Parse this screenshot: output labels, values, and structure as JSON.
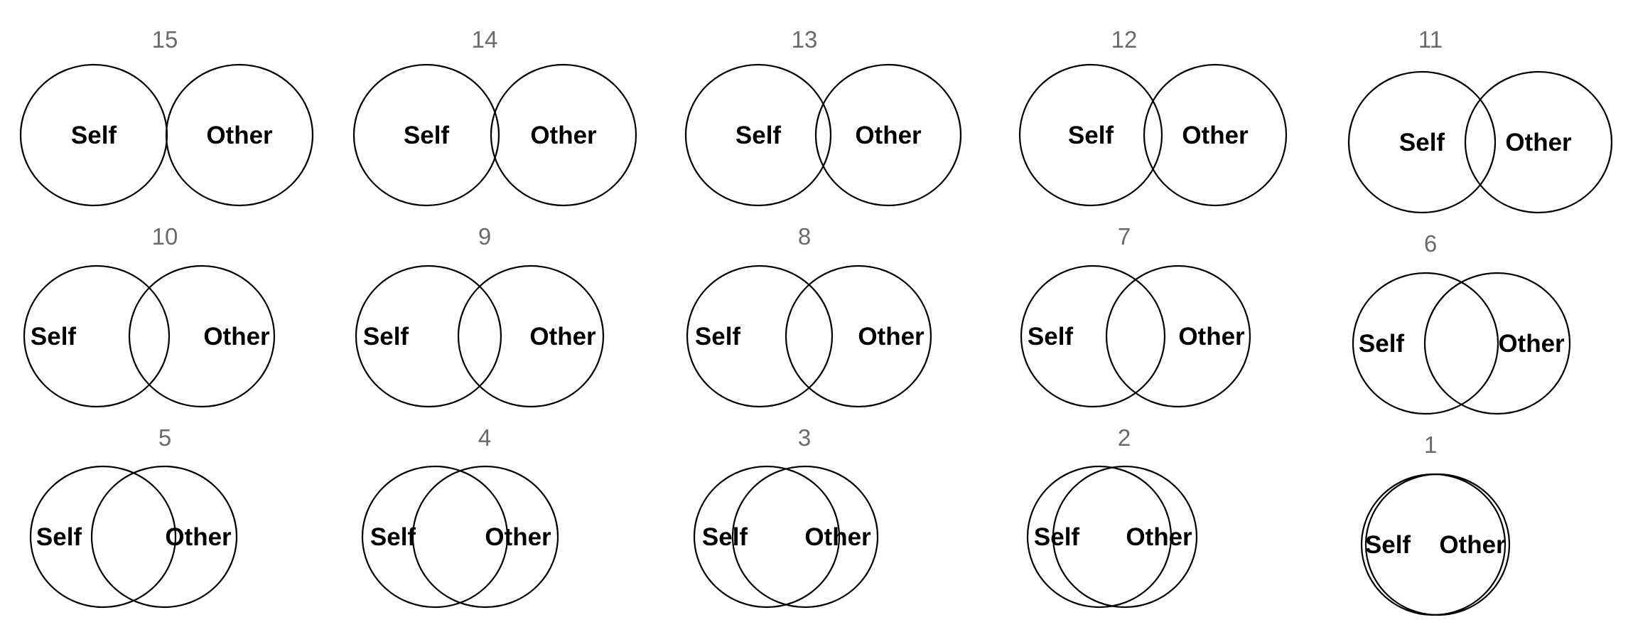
{
  "options": [
    {
      "number": "15",
      "self_label": "Self",
      "other_label": "Other"
    },
    {
      "number": "14",
      "self_label": "Self",
      "other_label": "Other"
    },
    {
      "number": "13",
      "self_label": "Self",
      "other_label": "Other"
    },
    {
      "number": "12",
      "self_label": "Self",
      "other_label": "Other"
    },
    {
      "number": "11",
      "self_label": "Self",
      "other_label": "Other"
    },
    {
      "number": "10",
      "self_label": "Self",
      "other_label": "Other"
    },
    {
      "number": "9",
      "self_label": "Self",
      "other_label": "Other"
    },
    {
      "number": "8",
      "self_label": "Self",
      "other_label": "Other"
    },
    {
      "number": "7",
      "self_label": "Self",
      "other_label": "Other"
    },
    {
      "number": "6",
      "self_label": "Self",
      "other_label": "Other"
    },
    {
      "number": "5",
      "self_label": "Self",
      "other_label": "Other"
    },
    {
      "number": "4",
      "self_label": "Self",
      "other_label": "Other"
    },
    {
      "number": "3",
      "self_label": "Self",
      "other_label": "Other"
    },
    {
      "number": "2",
      "self_label": "Self",
      "other_label": "Other"
    },
    {
      "number": "1",
      "self_label": "Self",
      "other_label": "Other"
    }
  ]
}
